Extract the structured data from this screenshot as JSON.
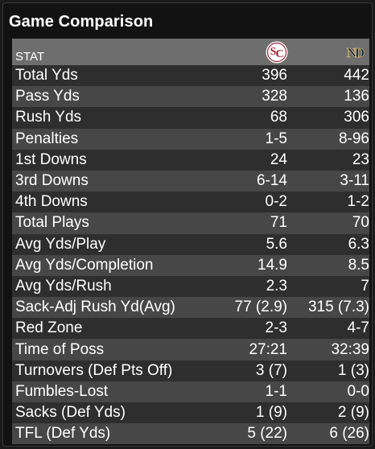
{
  "title": "Game Comparison",
  "header": {
    "stat_label": "STAT",
    "team1_logo": "usc-sc-logo",
    "team2_logo": "notre-dame-nd-logo"
  },
  "colors": {
    "usc": "#9d2235",
    "nd": "#0c2340",
    "header_bg": "#6e6e6e"
  },
  "rows": [
    {
      "label": "Total Yds",
      "team1": "396",
      "team2": "442"
    },
    {
      "label": "Pass Yds",
      "team1": "328",
      "team2": "136"
    },
    {
      "label": "Rush Yds",
      "team1": "68",
      "team2": "306"
    },
    {
      "label": "Penalties",
      "team1": "1-5",
      "team2": "8-96"
    },
    {
      "label": "1st Downs",
      "team1": "24",
      "team2": "23"
    },
    {
      "label": "3rd Downs",
      "team1": "6-14",
      "team2": "3-11"
    },
    {
      "label": "4th Downs",
      "team1": "0-2",
      "team2": "1-2"
    },
    {
      "label": "Total Plays",
      "team1": "71",
      "team2": "70"
    },
    {
      "label": "Avg Yds/Play",
      "team1": "5.6",
      "team2": "6.3"
    },
    {
      "label": "Avg Yds/Completion",
      "team1": "14.9",
      "team2": "8.5"
    },
    {
      "label": "Avg Yds/Rush",
      "team1": "2.3",
      "team2": "7"
    },
    {
      "label": "Sack-Adj Rush Yd(Avg)",
      "team1": "77 (2.9)",
      "team2": "315 (7.3)"
    },
    {
      "label": "Red Zone",
      "team1": "2-3",
      "team2": "4-7"
    },
    {
      "label": "Time of Poss",
      "team1": "27:21",
      "team2": "32:39"
    },
    {
      "label": "Turnovers (Def Pts Off)",
      "team1": "3 (7)",
      "team2": "1 (3)"
    },
    {
      "label": "Fumbles-Lost",
      "team1": "1-1",
      "team2": "0-0"
    },
    {
      "label": "Sacks (Def Yds)",
      "team1": "1 (9)",
      "team2": "2 (9)"
    },
    {
      "label": "TFL (Def Yds)",
      "team1": "5 (22)",
      "team2": "6 (26)"
    }
  ]
}
